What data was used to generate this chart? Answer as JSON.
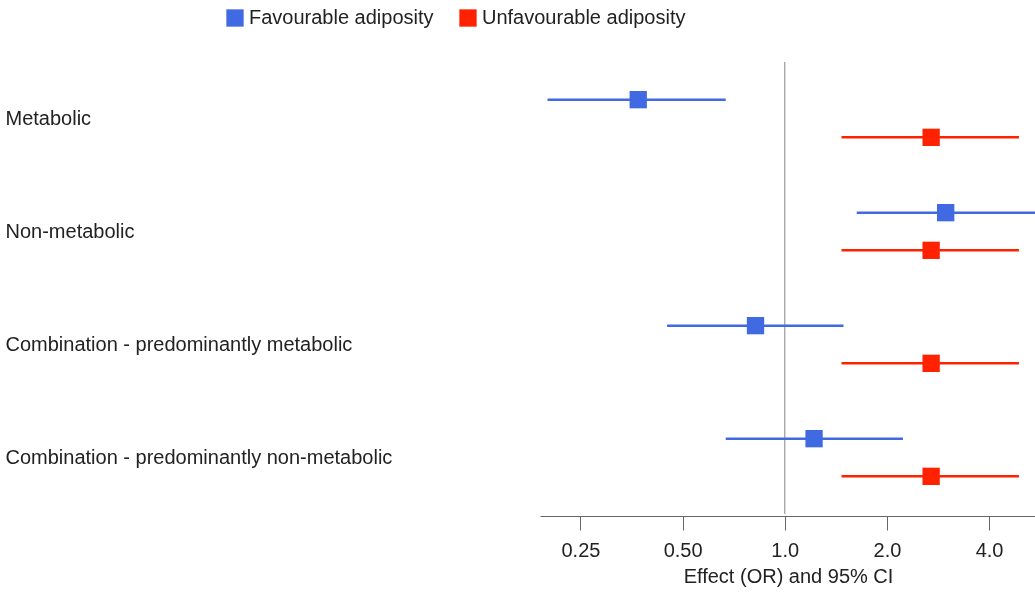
{
  "chart_data": {
    "type": "scatter",
    "orientation": "horizontal",
    "marker": "square",
    "legend": "top",
    "grid": false,
    "log": "x",
    "categories": [
      "Metabolic",
      "Non-metabolic",
      "Combination - predominantly metabolic",
      "Combination - predominantly non-metabolic"
    ],
    "xlabel": "Effect (OR) and 95% CI",
    "xlim": [
      0.19,
      5.5
    ],
    "xticks": [
      {
        "value": 0.25,
        "label": "0.25"
      },
      {
        "value": 0.5,
        "label": "0.50"
      },
      {
        "value": 1,
        "label": "1.0"
      },
      {
        "value": 2,
        "label": "2.0"
      },
      {
        "value": 4,
        "label": "4.0"
      }
    ],
    "ref_lines": [
      {
        "axis": "x",
        "value": 1,
        "color": "#999999"
      }
    ],
    "series": [
      {
        "name": "Favourable adiposity",
        "color": "#4169e1",
        "values": [
          0.37,
          2.98,
          0.82,
          1.22
        ],
        "errors": [
          [
            0.2,
            0.67
          ],
          [
            1.63,
            5.5
          ],
          [
            0.45,
            1.49
          ],
          [
            0.67,
            2.23
          ]
        ]
      },
      {
        "name": "Unfavourable adiposity",
        "color": "#ff2200",
        "values": [
          2.7,
          2.7,
          2.7,
          2.7
        ],
        "errors": [
          [
            1.47,
            4.9
          ],
          [
            1.47,
            4.9
          ],
          [
            1.47,
            4.9
          ],
          [
            1.47,
            4.9
          ]
        ]
      }
    ]
  }
}
